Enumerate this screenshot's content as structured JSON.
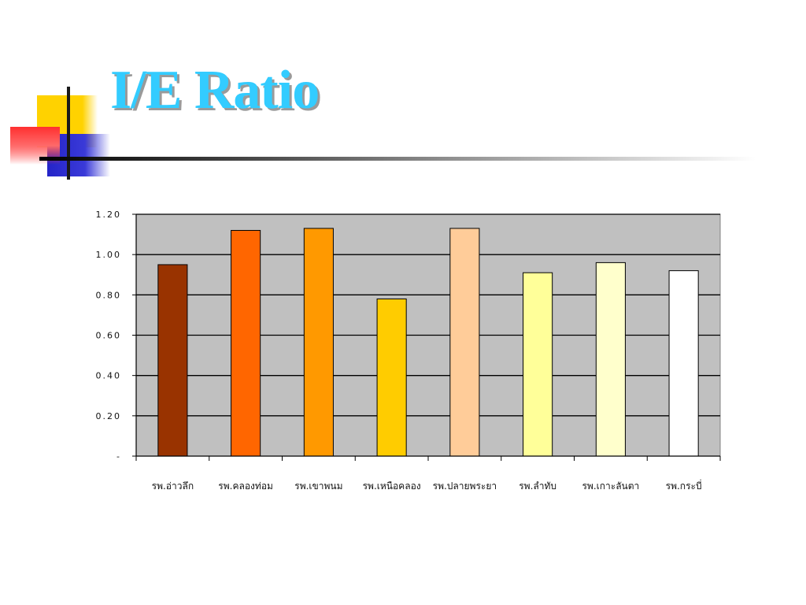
{
  "slide": {
    "title": "I/E Ratio"
  },
  "colors": {
    "title": "#33ccff",
    "plot_bg": "#c0c0c0",
    "decor_yellow": "#ffd200",
    "decor_red": "#ff4040",
    "decor_blue": "#2f2fd0"
  },
  "chart_data": {
    "type": "bar",
    "title": "",
    "xlabel": "",
    "ylabel": "",
    "categories": [
      "รพ.อ่าวลึก",
      "รพ.คลองท่อม",
      "รพ.เขาพนม",
      "รพ.เหนือคลอง",
      "รพ.ปลายพระยา",
      "รพ.ลำทับ",
      "รพ.เกาะลันตา",
      "รพ.กระบี่"
    ],
    "values": [
      0.95,
      1.12,
      1.13,
      0.78,
      1.13,
      0.91,
      0.96,
      0.92
    ],
    "bar_colors": [
      "#993300",
      "#ff6600",
      "#ff9900",
      "#ffcc00",
      "#ffcc99",
      "#ffff99",
      "#ffffcc",
      "#ffffff"
    ],
    "yticks": [
      {
        "value": 0,
        "label": "-"
      },
      {
        "value": 0.2,
        "label": "0.20"
      },
      {
        "value": 0.4,
        "label": "0.40"
      },
      {
        "value": 0.6,
        "label": "0.60"
      },
      {
        "value": 0.8,
        "label": "0.80"
      },
      {
        "value": 1.0,
        "label": "1.00"
      },
      {
        "value": 1.2,
        "label": "1.20"
      }
    ],
    "ylim": [
      0,
      1.2
    ],
    "grid": true,
    "legend": "none"
  }
}
